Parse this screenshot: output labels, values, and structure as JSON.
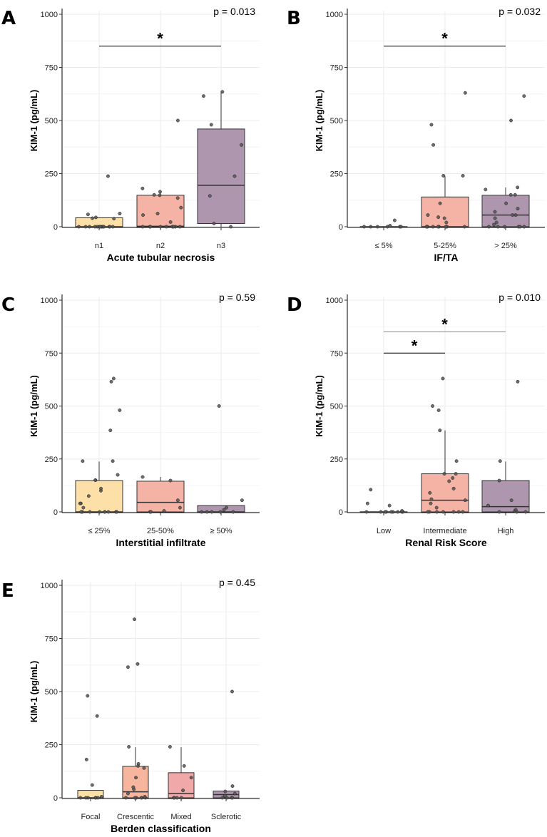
{
  "figure": {
    "ylabel": "KIM-1 (pg/mL)"
  },
  "chart_data": [
    {
      "panel": "A",
      "type": "box",
      "xlabel": "Acute tubular necrosis",
      "ylabel": "KIM-1 (pg/mL)",
      "ylim": [
        0,
        1000
      ],
      "yticks": [
        "0",
        "250",
        "500",
        "750",
        "1000"
      ],
      "p_value": "p = 0.013",
      "categories": [
        "n1",
        "n2",
        "n3"
      ],
      "colors": [
        "#fde0a8",
        "#f4b3a5",
        "#ae97ae"
      ],
      "boxes": [
        {
          "q1": 0,
          "median": 0,
          "q3": 42,
          "whisker_low": 0,
          "whisker_high": 42,
          "points": [
            0,
            0,
            0,
            0,
            0,
            0,
            0,
            0,
            0,
            0,
            0,
            0,
            0,
            0,
            38,
            40,
            44,
            58,
            62,
            238
          ]
        },
        {
          "q1": 0,
          "median": 2,
          "q3": 148,
          "whisker_low": 0,
          "whisker_high": 165,
          "points": [
            0,
            0,
            0,
            0,
            0,
            0,
            0,
            0,
            0,
            22,
            55,
            62,
            90,
            135,
            148,
            150,
            165,
            180,
            500
          ]
        },
        {
          "q1": 15,
          "median": 195,
          "q3": 460,
          "whisker_low": 0,
          "whisker_high": 635,
          "points": [
            0,
            15,
            145,
            238,
            385,
            480,
            615,
            635
          ]
        }
      ],
      "brackets": [
        {
          "from": 0,
          "to": 2,
          "y": 850,
          "label": "*"
        }
      ]
    },
    {
      "panel": "B",
      "type": "box",
      "xlabel": "IF/TA",
      "ylabel": "KIM-1 (pg/mL)",
      "ylim": [
        0,
        1000
      ],
      "yticks": [
        "0",
        "250",
        "500",
        "750",
        "1000"
      ],
      "p_value": "p = 0.032",
      "categories": [
        "≤ 5%",
        "5-25%",
        "> 25%"
      ],
      "colors": [
        "#fde0a8",
        "#f4b3a5",
        "#ae97ae"
      ],
      "boxes": [
        {
          "q1": 0,
          "median": 0,
          "q3": 0,
          "whisker_low": 0,
          "whisker_high": 0,
          "points": [
            0,
            0,
            0,
            0,
            0,
            0,
            5,
            30
          ]
        },
        {
          "q1": 0,
          "median": 0,
          "q3": 140,
          "whisker_low": 0,
          "whisker_high": 238,
          "points": [
            0,
            0,
            0,
            0,
            0,
            0,
            0,
            0,
            0,
            20,
            40,
            45,
            55,
            110,
            240,
            240,
            385,
            480,
            630
          ]
        },
        {
          "q1": 0,
          "median": 55,
          "q3": 148,
          "whisker_low": 0,
          "whisker_high": 185,
          "points": [
            0,
            0,
            0,
            0,
            0,
            0,
            10,
            20,
            40,
            55,
            55,
            70,
            85,
            110,
            150,
            150,
            175,
            185,
            500,
            615
          ]
        }
      ],
      "brackets": [
        {
          "from": 0,
          "to": 2,
          "y": 850,
          "label": "*"
        }
      ]
    },
    {
      "panel": "C",
      "type": "box",
      "xlabel": "Interstitial infiltrate",
      "ylabel": "KIM-1 (pg/mL)",
      "ylim": [
        0,
        1000
      ],
      "yticks": [
        "0",
        "250",
        "500",
        "750",
        "1000"
      ],
      "p_value": "p = 0.59",
      "categories": [
        "≤ 25%",
        "25-50%",
        "≥ 50%"
      ],
      "colors": [
        "#fde0a8",
        "#f4b3a5",
        "#ae97ae"
      ],
      "boxes": [
        {
          "q1": 0,
          "median": 0,
          "q3": 148,
          "whisker_low": 0,
          "whisker_high": 238,
          "points": [
            0,
            0,
            0,
            0,
            0,
            0,
            0,
            0,
            0,
            0,
            20,
            40,
            40,
            75,
            100,
            110,
            150,
            150,
            175,
            240,
            240,
            385,
            480,
            615,
            630
          ]
        },
        {
          "q1": 0,
          "median": 45,
          "q3": 145,
          "whisker_low": 0,
          "whisker_high": 165,
          "points": [
            0,
            0,
            5,
            20,
            55,
            148,
            165
          ]
        },
        {
          "q1": 0,
          "median": 0,
          "q3": 30,
          "whisker_low": 0,
          "whisker_high": 30,
          "points": [
            0,
            0,
            0,
            0,
            0,
            10,
            20,
            55,
            500
          ]
        }
      ],
      "brackets": []
    },
    {
      "panel": "D",
      "type": "box",
      "xlabel": "Renal Risk Score",
      "ylabel": "KIM-1 (pg/mL)",
      "ylim": [
        0,
        1000
      ],
      "yticks": [
        "0",
        "250",
        "500",
        "750",
        "1000"
      ],
      "p_value": "p = 0.010",
      "categories": [
        "Low",
        "Intermediate",
        "High"
      ],
      "colors": [
        "#fde0a8",
        "#f4b3a5",
        "#ae97ae"
      ],
      "boxes": [
        {
          "q1": 0,
          "median": 0,
          "q3": 0,
          "whisker_low": 0,
          "whisker_high": 0,
          "points": [
            0,
            0,
            0,
            0,
            0,
            0,
            0,
            0,
            0,
            5,
            30,
            40,
            105
          ]
        },
        {
          "q1": 0,
          "median": 55,
          "q3": 180,
          "whisker_low": 0,
          "whisker_high": 385,
          "points": [
            0,
            0,
            0,
            0,
            0,
            0,
            0,
            20,
            40,
            55,
            60,
            90,
            110,
            145,
            160,
            180,
            180,
            240,
            385,
            480,
            500,
            630
          ]
        },
        {
          "q1": 0,
          "median": 25,
          "q3": 148,
          "whisker_low": 0,
          "whisker_high": 238,
          "points": [
            0,
            0,
            0,
            5,
            10,
            30,
            55,
            148,
            240,
            615
          ]
        }
      ],
      "brackets": [
        {
          "from": 0,
          "to": 2,
          "y": 850,
          "label": "*"
        },
        {
          "from": 0,
          "to": 1,
          "y": 750,
          "label": "*"
        }
      ]
    },
    {
      "panel": "E",
      "type": "box",
      "xlabel": "Berden classification",
      "ylabel": "KIM-1 (pg/mL)",
      "ylim": [
        0,
        1000
      ],
      "yticks": [
        "0",
        "250",
        "500",
        "750",
        "1000"
      ],
      "p_value": "p = 0.45",
      "categories": [
        "Focal",
        "Crescentic",
        "Mixed",
        "Sclerotic"
      ],
      "colors": [
        "#fde0a8",
        "#f6b59c",
        "#f1a8a8",
        "#ae97ae"
      ],
      "boxes": [
        {
          "q1": 0,
          "median": 0,
          "q3": 35,
          "whisker_low": 0,
          "whisker_high": 35,
          "points": [
            0,
            0,
            0,
            0,
            0,
            0,
            5,
            60,
            180,
            385,
            480
          ]
        },
        {
          "q1": 0,
          "median": 28,
          "q3": 148,
          "whisker_low": 0,
          "whisker_high": 238,
          "points": [
            0,
            0,
            0,
            0,
            0,
            0,
            5,
            20,
            40,
            50,
            95,
            140,
            150,
            160,
            240,
            615,
            630,
            840
          ]
        },
        {
          "q1": 0,
          "median": 20,
          "q3": 118,
          "whisker_low": 0,
          "whisker_high": 238,
          "points": [
            0,
            0,
            0,
            0,
            35,
            95,
            150,
            240
          ]
        },
        {
          "q1": 0,
          "median": 15,
          "q3": 32,
          "whisker_low": 0,
          "whisker_high": 32,
          "points": [
            0,
            0,
            0,
            0,
            10,
            20,
            30,
            55,
            500
          ]
        }
      ],
      "brackets": []
    }
  ]
}
